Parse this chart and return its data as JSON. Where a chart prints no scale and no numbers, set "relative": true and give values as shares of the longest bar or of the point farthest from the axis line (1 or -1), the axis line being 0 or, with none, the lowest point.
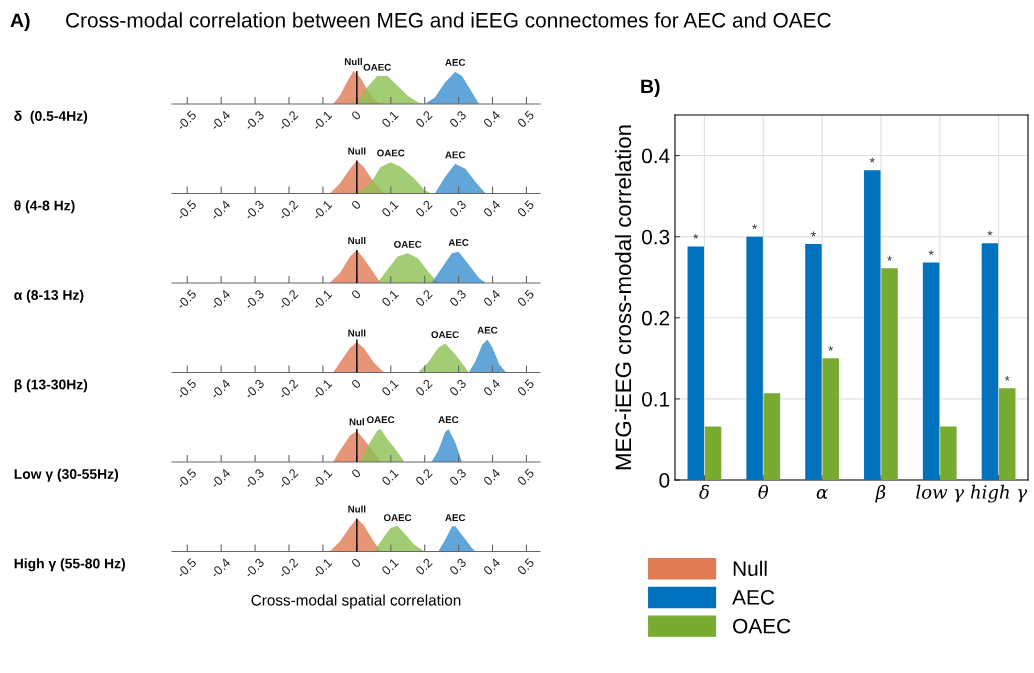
{
  "chart_data": [
    {
      "type": "area",
      "relative": true,
      "title": "Cross-modal correlation between MEG and iEEG connectomes for AEC and OAEC",
      "annotations": [
        "A)"
      ],
      "ylabel": "δ  (0.5-4Hz)",
      "xlim": [
        -0.545,
        0.54
      ],
      "xticks": [
        -0.5,
        -0.4,
        -0.3,
        -0.2,
        -0.1,
        0,
        0.1,
        0.2,
        0.3,
        0.4,
        0.5
      ],
      "tick_labels": "x",
      "ref_lines": [
        {
          "axis": "x",
          "value": 0,
          "color": "#000000"
        }
      ],
      "series": [
        {
          "name": "Null",
          "color": "#e07b54",
          "x": [
            -0.07,
            -0.05,
            -0.03,
            -0.01,
            0.01,
            0.03,
            0.05,
            0.07
          ],
          "values": [
            0,
            0.25,
            0.65,
            1.0,
            0.8,
            0.45,
            0.15,
            0
          ]
        },
        {
          "name": "OAEC",
          "color": "#8cc152",
          "x": [
            0.0,
            0.03,
            0.06,
            0.09,
            0.12,
            0.15,
            0.18,
            0.2
          ],
          "values": [
            0,
            0.5,
            0.85,
            0.85,
            0.55,
            0.25,
            0.05,
            0
          ]
        },
        {
          "name": "AEC",
          "color": "#3a8fd0",
          "x": [
            0.2,
            0.23,
            0.26,
            0.29,
            0.31,
            0.34,
            0.36
          ],
          "values": [
            0,
            0.2,
            0.65,
            0.98,
            0.85,
            0.35,
            0
          ]
        }
      ]
    },
    {
      "type": "area",
      "relative": true,
      "ylabel": "θ (4-8 Hz)",
      "xlim": [
        -0.545,
        0.54
      ],
      "xticks": [
        -0.5,
        -0.4,
        -0.3,
        -0.2,
        -0.1,
        0,
        0.1,
        0.2,
        0.3,
        0.4,
        0.5
      ],
      "tick_labels": "x",
      "ref_lines": [
        {
          "axis": "x",
          "value": 0,
          "color": "#000000"
        }
      ],
      "series": [
        {
          "name": "Null",
          "color": "#e07b54",
          "x": [
            -0.08,
            -0.05,
            -0.02,
            0,
            0.02,
            0.05,
            0.08
          ],
          "values": [
            0,
            0.3,
            0.75,
            1.0,
            0.8,
            0.35,
            0
          ]
        },
        {
          "name": "OAEC",
          "color": "#8cc152",
          "x": [
            0.0,
            0.04,
            0.07,
            0.1,
            0.13,
            0.17,
            0.2,
            0.22
          ],
          "values": [
            0,
            0.3,
            0.8,
            0.95,
            0.8,
            0.45,
            0.1,
            0
          ]
        },
        {
          "name": "AEC",
          "color": "#3a8fd0",
          "x": [
            0.23,
            0.26,
            0.29,
            0.32,
            0.35,
            0.38
          ],
          "values": [
            0,
            0.5,
            0.9,
            0.75,
            0.35,
            0
          ]
        }
      ]
    },
    {
      "type": "area",
      "relative": true,
      "ylabel": "α (8-13 Hz)",
      "xlim": [
        -0.545,
        0.54
      ],
      "xticks": [
        -0.5,
        -0.4,
        -0.3,
        -0.2,
        -0.1,
        0,
        0.1,
        0.2,
        0.3,
        0.4,
        0.5
      ],
      "tick_labels": "x",
      "ref_lines": [
        {
          "axis": "x",
          "value": 0,
          "color": "#000000"
        }
      ],
      "series": [
        {
          "name": "Null",
          "color": "#e07b54",
          "x": [
            -0.08,
            -0.05,
            -0.02,
            0,
            0.02,
            0.05,
            0.07
          ],
          "values": [
            0,
            0.3,
            0.8,
            1.0,
            0.75,
            0.3,
            0
          ]
        },
        {
          "name": "OAEC",
          "color": "#8cc152",
          "x": [
            0.06,
            0.09,
            0.12,
            0.15,
            0.18,
            0.21,
            0.24
          ],
          "values": [
            0,
            0.4,
            0.8,
            0.9,
            0.75,
            0.35,
            0
          ]
        },
        {
          "name": "AEC",
          "color": "#3a8fd0",
          "x": [
            0.22,
            0.25,
            0.28,
            0.3,
            0.33,
            0.36,
            0.38
          ],
          "values": [
            0,
            0.45,
            0.9,
            0.95,
            0.55,
            0.15,
            0
          ]
        }
      ]
    },
    {
      "type": "area",
      "relative": true,
      "ylabel": "β (13-30Hz)",
      "xlim": [
        -0.545,
        0.54
      ],
      "xticks": [
        -0.5,
        -0.4,
        -0.3,
        -0.2,
        -0.1,
        0,
        0.1,
        0.2,
        0.3,
        0.4,
        0.5
      ],
      "tick_labels": "x",
      "ref_lines": [
        {
          "axis": "x",
          "value": 0,
          "color": "#000000"
        }
      ],
      "series": [
        {
          "name": "Null",
          "color": "#e07b54",
          "x": [
            -0.07,
            -0.05,
            -0.02,
            0,
            0.02,
            0.05,
            0.08
          ],
          "values": [
            0,
            0.3,
            0.75,
            0.92,
            0.75,
            0.3,
            0
          ]
        },
        {
          "name": "OAEC",
          "color": "#8cc152",
          "x": [
            0.18,
            0.21,
            0.24,
            0.26,
            0.29,
            0.32,
            0.33
          ],
          "values": [
            0,
            0.3,
            0.75,
            0.88,
            0.55,
            0.15,
            0
          ]
        },
        {
          "name": "AEC",
          "color": "#3a8fd0",
          "x": [
            0.33,
            0.35,
            0.37,
            0.385,
            0.4,
            0.42,
            0.44
          ],
          "values": [
            0,
            0.35,
            0.85,
            1.0,
            0.75,
            0.25,
            0
          ]
        }
      ]
    },
    {
      "type": "area",
      "relative": true,
      "ylabel": "Low γ (30-55Hz)",
      "xlim": [
        -0.545,
        0.54
      ],
      "xticks": [
        -0.5,
        -0.4,
        -0.3,
        -0.2,
        -0.1,
        0,
        0.1,
        0.2,
        0.3,
        0.4,
        0.5
      ],
      "tick_labels": "x",
      "ref_lines": [
        {
          "axis": "x",
          "value": 0,
          "color": "#000000"
        }
      ],
      "series": [
        {
          "name": "Nul",
          "color": "#e07b54",
          "x": [
            -0.07,
            -0.05,
            -0.02,
            0,
            0.02,
            0.05,
            0.07
          ],
          "values": [
            0,
            0.35,
            0.8,
            0.94,
            0.7,
            0.3,
            0
          ]
        },
        {
          "name": "OAEC",
          "color": "#8cc152",
          "x": [
            0.01,
            0.03,
            0.06,
            0.07,
            0.09,
            0.12,
            0.14
          ],
          "values": [
            0,
            0.45,
            0.95,
            1.0,
            0.7,
            0.3,
            0
          ]
        },
        {
          "name": "AEC",
          "color": "#3a8fd0",
          "x": [
            0.22,
            0.24,
            0.26,
            0.27,
            0.29,
            0.31
          ],
          "values": [
            0,
            0.35,
            0.9,
            1.0,
            0.6,
            0
          ]
        }
      ]
    },
    {
      "type": "area",
      "relative": true,
      "ylabel": "High γ (55-80 Hz)",
      "xlabel": "Cross-modal spatial correlation",
      "xlim": [
        -0.545,
        0.54
      ],
      "xticks": [
        -0.5,
        -0.4,
        -0.3,
        -0.2,
        -0.1,
        0,
        0.1,
        0.2,
        0.3,
        0.4,
        0.5
      ],
      "tick_labels": "x",
      "ref_lines": [
        {
          "axis": "x",
          "value": 0,
          "color": "#000000"
        }
      ],
      "series": [
        {
          "name": "Null",
          "color": "#e07b54",
          "x": [
            -0.08,
            -0.05,
            -0.02,
            0,
            0.02,
            0.05,
            0.07
          ],
          "values": [
            0,
            0.3,
            0.75,
            1.0,
            0.8,
            0.3,
            0
          ]
        },
        {
          "name": "OAEC",
          "color": "#8cc152",
          "x": [
            0.05,
            0.08,
            0.1,
            0.12,
            0.14,
            0.17,
            0.2
          ],
          "values": [
            0,
            0.45,
            0.72,
            0.77,
            0.55,
            0.2,
            0
          ]
        },
        {
          "name": "AEC",
          "color": "#3a8fd0",
          "x": [
            0.24,
            0.26,
            0.28,
            0.29,
            0.31,
            0.34,
            0.35
          ],
          "values": [
            0,
            0.35,
            0.75,
            0.77,
            0.5,
            0.1,
            0
          ]
        }
      ]
    },
    {
      "type": "bar",
      "annotations": [
        "B)"
      ],
      "ylabel": "MEG-iEEG cross-modal correlation",
      "categories": [
        "δ",
        "θ",
        "α",
        "β",
        "low γ",
        "high γ"
      ],
      "ylim": [
        0,
        0.45
      ],
      "yticks": [
        0,
        0.1,
        0.2,
        0.3,
        0.4
      ],
      "grid": true,
      "legend": "bottom",
      "series": [
        {
          "name": "Null",
          "color": "#e07b54",
          "values": [
            null,
            null,
            null,
            null,
            null,
            null
          ]
        },
        {
          "name": "AEC",
          "color": "#0072bd",
          "values": [
            0.288,
            0.3,
            0.291,
            0.382,
            0.268,
            0.292
          ],
          "value_labels": [
            "*",
            "*",
            "*",
            "*",
            "*",
            "*"
          ]
        },
        {
          "name": "OAEC",
          "color": "#77ac30",
          "values": [
            0.066,
            0.107,
            0.15,
            0.261,
            0.066,
            0.113
          ],
          "value_labels": [
            null,
            null,
            "*",
            "*",
            null,
            "*"
          ]
        }
      ]
    }
  ]
}
